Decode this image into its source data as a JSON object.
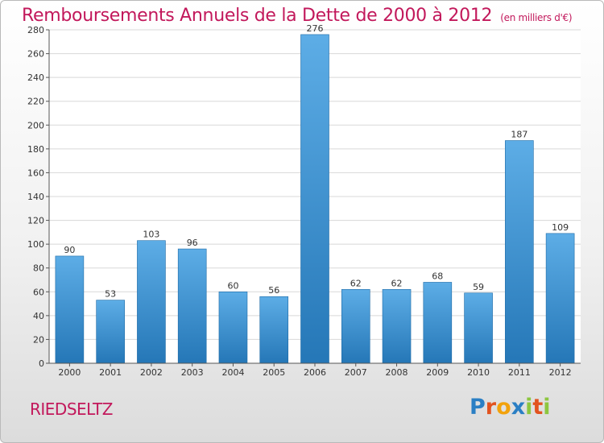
{
  "header": {
    "title": "Remboursements Annuels de la Dette de 2000 à 2012",
    "subtitle": "(en milliers d'€)"
  },
  "footer": {
    "town": "RIEDSELTZ",
    "logo": "Proxiti",
    "logo_letters": [
      {
        "ch": "P",
        "color": "#2a7fc4"
      },
      {
        "ch": "r",
        "color": "#e2531f"
      },
      {
        "ch": "o",
        "color": "#f2a20c"
      },
      {
        "ch": "x",
        "color": "#2a7fc4"
      },
      {
        "ch": "i",
        "color": "#8dc63f"
      },
      {
        "ch": "t",
        "color": "#e2531f"
      },
      {
        "ch": "i",
        "color": "#8dc63f"
      }
    ]
  },
  "colors": {
    "accent": "#c2185b",
    "bar_top": "#5dade6",
    "bar_bottom": "#2577b7",
    "grid": "#d8d8d8"
  },
  "chart_data": {
    "type": "bar",
    "title": "Remboursements Annuels de la Dette de 2000 à 2012",
    "subtitle": "(en milliers d'€)",
    "categories": [
      "2000",
      "2001",
      "2002",
      "2003",
      "2004",
      "2005",
      "2006",
      "2007",
      "2008",
      "2009",
      "2010",
      "2011",
      "2012"
    ],
    "values": [
      90,
      53,
      103,
      96,
      60,
      56,
      276,
      62,
      62,
      68,
      59,
      187,
      109
    ],
    "ylim": [
      0,
      280
    ],
    "yticks": [
      0,
      20,
      40,
      60,
      80,
      100,
      120,
      140,
      160,
      180,
      200,
      220,
      240,
      260,
      280
    ],
    "grid": true,
    "data_labels": true
  }
}
